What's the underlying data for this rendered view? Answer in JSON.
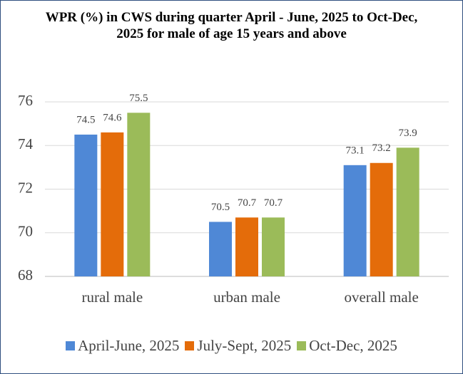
{
  "chart_data": {
    "type": "bar",
    "title": "WPR (%) in CWS during quarter April - June, 2025 to Oct-Dec, 2025 for male of age 15 years and above",
    "categories": [
      "rural male",
      "urban male",
      "overall male"
    ],
    "series": [
      {
        "name": "April-June, 2025",
        "color": "#4f88d6",
        "values": [
          74.5,
          70.5,
          73.1
        ]
      },
      {
        "name": "July-Sept, 2025",
        "color": "#e46c0a",
        "values": [
          74.6,
          70.7,
          73.2
        ]
      },
      {
        "name": "Oct-Dec, 2025",
        "color": "#9bbb59",
        "values": [
          75.5,
          70.7,
          73.9
        ]
      }
    ],
    "ylim": [
      68,
      76
    ],
    "yticks": [
      68,
      70,
      72,
      74,
      76
    ],
    "grid": true,
    "legend": "bottom"
  }
}
